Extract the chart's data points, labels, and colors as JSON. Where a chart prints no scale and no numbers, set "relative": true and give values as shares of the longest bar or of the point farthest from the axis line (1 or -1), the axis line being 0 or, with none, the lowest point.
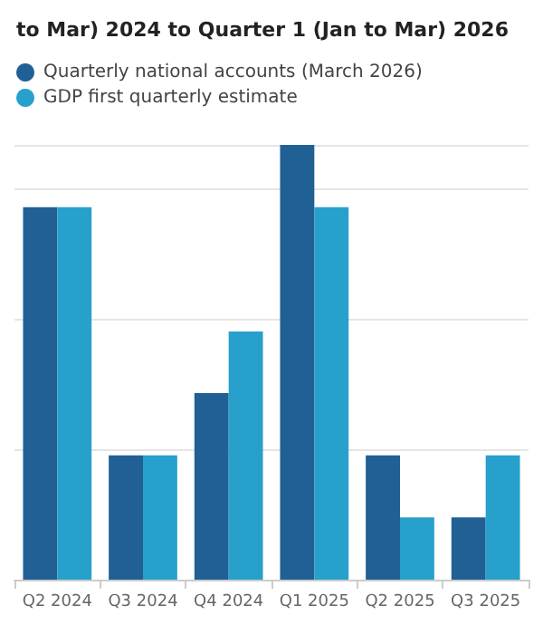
{
  "chart_data": {
    "type": "bar",
    "title": "to Mar) 2024 to Quarter 1 (Jan to Mar) 2026",
    "categories": [
      "Q2 2024",
      "Q3 2024",
      "Q4 2024",
      "Q1 2025",
      "Q2 2025",
      "Q3 2025"
    ],
    "series": [
      {
        "name": "Quarterly national accounts (March 2026)",
        "color": "#206095",
        "values": [
          0.857,
          0.286,
          0.429,
          1,
          0.286,
          0.143
        ]
      },
      {
        "name": "GDP first quarterly estimate",
        "color": "#27a0cc",
        "values": [
          0.857,
          0.286,
          0.571,
          0.857,
          0.143,
          0.286
        ]
      }
    ],
    "relative": true,
    "grid": "y",
    "legend": "top"
  }
}
